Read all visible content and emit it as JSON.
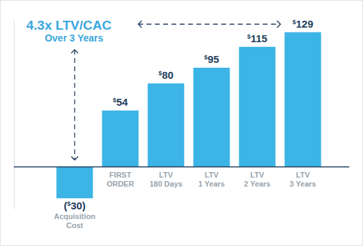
{
  "chart_data": {
    "type": "bar",
    "annotations": [
      "4.3x LTV/CAC",
      "Over 3 Years"
    ],
    "categories": [
      "Acquisition Cost",
      "FIRST ORDER",
      "LTV 180 Days",
      "LTV 1 Years",
      "LTV 2 Years",
      "LTV 3 Years"
    ],
    "values": [
      -30,
      54,
      80,
      95,
      115,
      129
    ],
    "value_labels": [
      "($30)",
      "$54",
      "$80",
      "$95",
      "$115",
      "$129"
    ],
    "color": "#3cb4e5",
    "ylim": [
      -40,
      140
    ],
    "grid": false,
    "data_labels": true,
    "tick_labels": "x"
  }
}
